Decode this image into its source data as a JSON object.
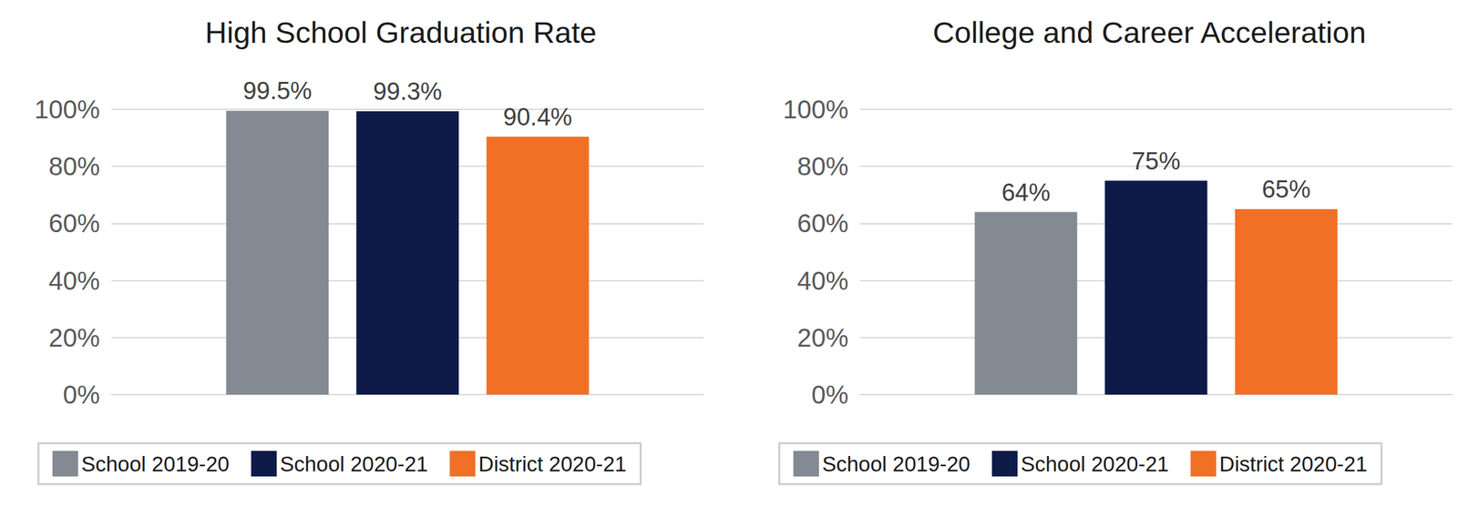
{
  "chart_data": [
    {
      "type": "bar",
      "title": "High School Graduation Rate",
      "categories": [
        null
      ],
      "series": [
        {
          "name": "School 2019-20",
          "color": "#838a93",
          "values": [
            99.5
          ],
          "value_labels": [
            "99.5%"
          ]
        },
        {
          "name": "School 2020-21",
          "color": "#0e1b48",
          "values": [
            99.3
          ],
          "value_labels": [
            "99.3%"
          ]
        },
        {
          "name": "District 2020-21",
          "color": "#f07026",
          "values": [
            90.4
          ],
          "value_labels": [
            "90.4%"
          ]
        }
      ],
      "ylim": [
        0,
        100
      ],
      "yticks": [
        {
          "value": 0,
          "label": "0%"
        },
        {
          "value": 20,
          "label": "20%"
        },
        {
          "value": 40,
          "label": "40%"
        },
        {
          "value": 60,
          "label": "60%"
        },
        {
          "value": 80,
          "label": "80%"
        },
        {
          "value": 100,
          "label": "100%"
        }
      ],
      "grid": true,
      "legend": "bottom",
      "data_labels": true,
      "tick_labels": "y"
    },
    {
      "type": "bar",
      "title": "College and Career Acceleration",
      "categories": [
        null
      ],
      "series": [
        {
          "name": "School 2019-20",
          "color": "#838a93",
          "values": [
            64
          ],
          "value_labels": [
            "64%"
          ]
        },
        {
          "name": "School 2020-21",
          "color": "#0e1b48",
          "values": [
            75
          ],
          "value_labels": [
            "75%"
          ]
        },
        {
          "name": "District 2020-21",
          "color": "#f07026",
          "values": [
            65
          ],
          "value_labels": [
            "65%"
          ]
        }
      ],
      "ylim": [
        0,
        100
      ],
      "yticks": [
        {
          "value": 0,
          "label": "0%"
        },
        {
          "value": 20,
          "label": "20%"
        },
        {
          "value": 40,
          "label": "40%"
        },
        {
          "value": 60,
          "label": "60%"
        },
        {
          "value": 80,
          "label": "80%"
        },
        {
          "value": 100,
          "label": "100%"
        }
      ],
      "grid": true,
      "legend": "bottom",
      "data_labels": true,
      "tick_labels": "y"
    }
  ]
}
